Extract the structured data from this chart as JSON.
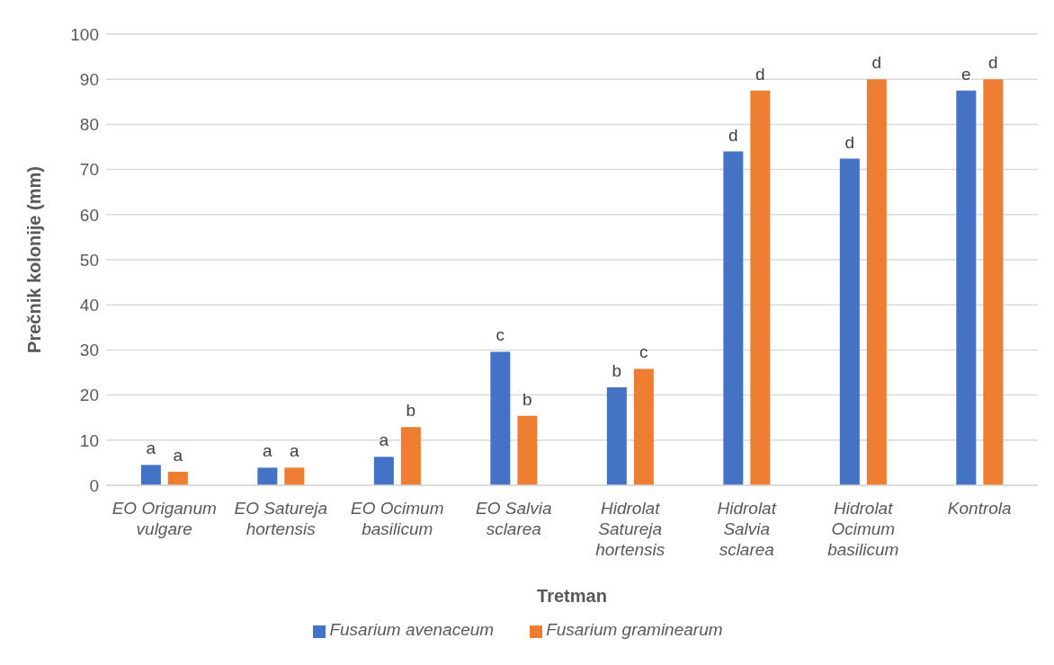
{
  "chart_data": {
    "type": "bar",
    "xlabel": "Tretman",
    "ylabel": "Prečnik kolonije (mm)",
    "categories": [
      "EO Origanum vulgare",
      "EO Satureja hortensis",
      "EO Ocimum basilicum",
      "EO Salvia sclarea",
      "Hidrolat Satureja hortensis",
      "Hidrolat Salvia sclarea",
      "Hidrolat Ocimum basilicum",
      "Kontrola"
    ],
    "series": [
      {
        "name": "Fusarium avenaceum",
        "color": "#4472c4",
        "values": [
          4.5,
          3.9,
          6.3,
          29.6,
          21.7,
          74,
          72.4,
          87.5
        ],
        "value_labels": [
          "a",
          "a",
          "a",
          "c",
          "b",
          "d",
          "d",
          "e"
        ]
      },
      {
        "name": "Fusarium graminearum",
        "color": "#ed7d31",
        "values": [
          3.0,
          3.9,
          12.9,
          15.4,
          25.8,
          87.5,
          90,
          90
        ],
        "value_labels": [
          "a",
          "a",
          "b",
          "b",
          "c",
          "d",
          "d",
          "d"
        ]
      }
    ],
    "ylim": [
      0,
      100
    ],
    "yticks": [
      0,
      10,
      20,
      30,
      40,
      50,
      60,
      70,
      80,
      90,
      100
    ],
    "grid": "y",
    "legend": "bottom"
  }
}
